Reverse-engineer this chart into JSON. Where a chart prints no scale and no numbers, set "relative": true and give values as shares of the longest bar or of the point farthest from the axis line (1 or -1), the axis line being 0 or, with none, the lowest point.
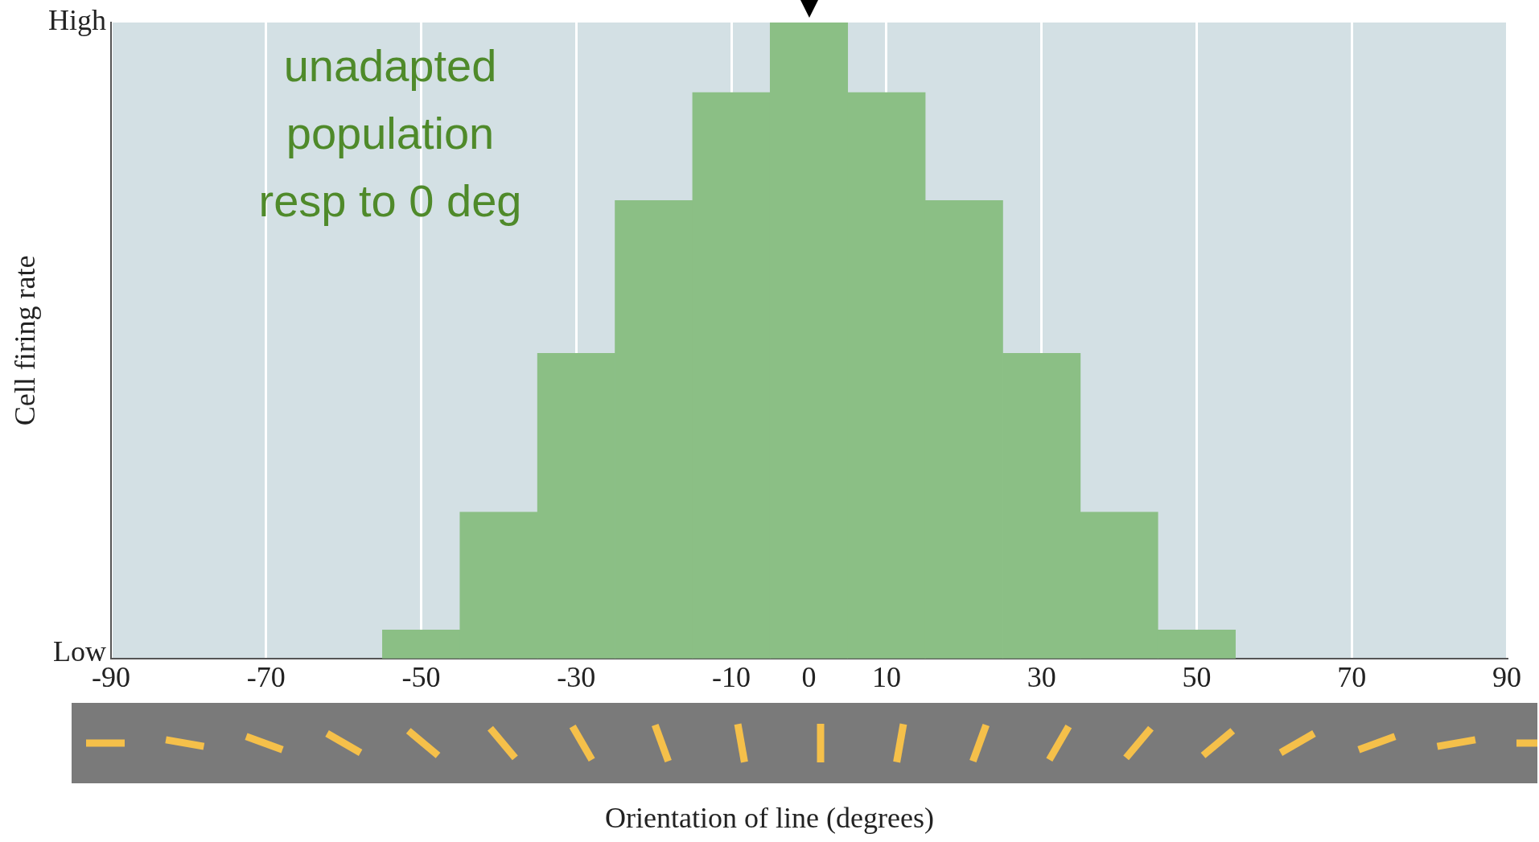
{
  "chart_data": {
    "type": "bar",
    "x": [
      -50,
      -40,
      -30,
      -20,
      -10,
      0,
      10,
      20,
      30,
      40,
      50
    ],
    "values": [
      0.045,
      0.23,
      0.48,
      0.72,
      0.89,
      1,
      0.89,
      0.72,
      0.48,
      0.23,
      0.045
    ],
    "color": "#8bbf85",
    "xlabel": "Orientation of line (degrees)",
    "ylabel": "Cell firing rate",
    "xlim": [
      -90,
      90
    ],
    "xticks": [
      -90,
      -70,
      -50,
      -30,
      -10,
      0,
      10,
      30,
      50,
      70,
      90
    ],
    "relative": true,
    "grid": "x",
    "legend": false,
    "annotations": [
      "High",
      "Low",
      "unadapted\npopulation\nresp to 0 deg"
    ]
  }
}
